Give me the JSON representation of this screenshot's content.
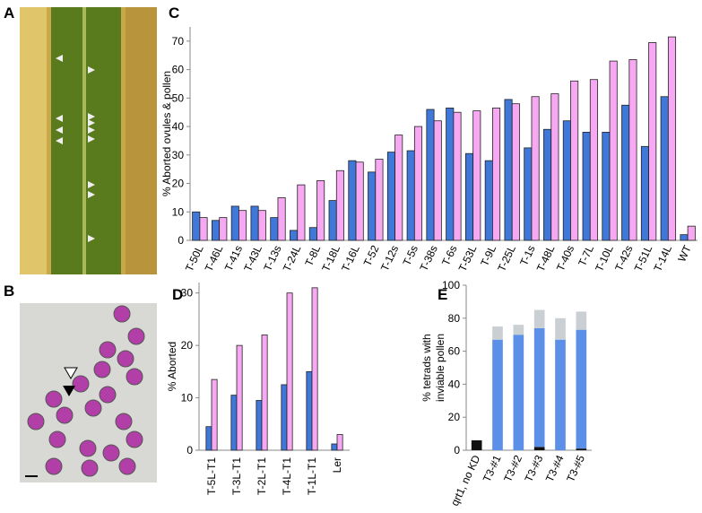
{
  "panel_labels": [
    "A",
    "B",
    "C",
    "D",
    "E"
  ],
  "chart_data": [
    {
      "type": "bar",
      "ylabel": "% Aborted ovules & pollen",
      "categories": [
        "T-50L",
        "T-46L",
        "T-41s",
        "T-43L",
        "T-13s",
        "T-24L",
        "T-8L",
        "T-18L",
        "T-16L",
        "T-52",
        "T-12s",
        "T-5s",
        "T-38s",
        "T-6s",
        "T-53L",
        "T-9L",
        "T-25L",
        "T-1s",
        "T-48L",
        "T-40s",
        "T-7L",
        "T-10L",
        "T-42s",
        "T-51L",
        "T-14L",
        "WT"
      ],
      "series": [
        {
          "color": "#3f78d8",
          "values": [
            10,
            7,
            12,
            12,
            8,
            3.5,
            4.5,
            14,
            28,
            24,
            31,
            31.5,
            46,
            46.5,
            30.5,
            28,
            49.5,
            32.5,
            39,
            42,
            38,
            38,
            47.5,
            33,
            50.5,
            2
          ]
        },
        {
          "color": "#f7a8f2",
          "values": [
            8,
            8,
            10.5,
            10.5,
            15,
            19.5,
            21,
            24.5,
            27.5,
            28.5,
            37,
            40,
            42,
            45,
            45.5,
            46.5,
            48,
            50.5,
            51.5,
            56,
            56.5,
            63,
            63.5,
            69.5,
            71.5,
            5
          ]
        }
      ],
      "ylim": [
        0,
        75
      ],
      "yticks": [
        0,
        10,
        20,
        30,
        40,
        50,
        60,
        70
      ]
    },
    {
      "type": "bar",
      "ylabel": "% Aborted",
      "categories": [
        "T-5L-T1",
        "T-3L-T1",
        "T-2L-T1",
        "T-4L-T1",
        "T-1L-T1",
        "Ler"
      ],
      "series": [
        {
          "color": "#3f78d8",
          "values": [
            4.5,
            10.5,
            9.5,
            12.5,
            15,
            1.2
          ]
        },
        {
          "color": "#f7a8f2",
          "values": [
            13.5,
            20,
            22,
            30,
            31,
            3
          ]
        }
      ],
      "ylim": [
        0,
        32
      ],
      "yticks": [
        0,
        10,
        20,
        30
      ]
    },
    {
      "type": "bar",
      "stacked": true,
      "ylabel": [
        "% tetrads with",
        "inviable pollen"
      ],
      "categories": [
        "qrt1, no KD",
        "T3-#1",
        "T3-#2",
        "T3-#3",
        "T3-#4",
        "T3-#5"
      ],
      "series": [
        {
          "color": "#111111",
          "values": [
            6,
            0,
            0,
            2,
            0,
            1
          ]
        },
        {
          "color": "#5b8fe8",
          "values": [
            0,
            67,
            70,
            72,
            67,
            72
          ]
        },
        {
          "color": "#c9cfd3",
          "values": [
            0,
            8,
            6,
            11,
            13,
            11
          ]
        }
      ],
      "ylim": [
        0,
        100
      ],
      "yticks": [
        0,
        20,
        40,
        60,
        80,
        100
      ]
    }
  ]
}
